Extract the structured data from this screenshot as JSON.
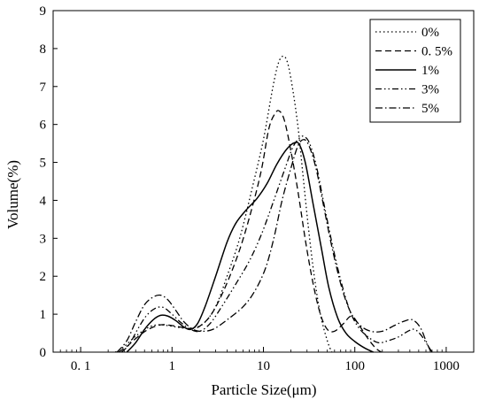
{
  "chart_data": {
    "type": "line",
    "xlabel": "Particle Size(μm)",
    "ylabel": "Volume(%)",
    "xscale": "log",
    "xlim": [
      0.05,
      2000
    ],
    "ylim": [
      0,
      9
    ],
    "x_ticks": [
      0.1,
      1,
      10,
      100,
      1000
    ],
    "x_tick_labels": [
      "0. 1",
      "1",
      "10",
      "100",
      "1000"
    ],
    "y_ticks": [
      0,
      1,
      2,
      3,
      4,
      5,
      6,
      7,
      8,
      9
    ],
    "y_tick_labels": [
      "0",
      "1",
      "2",
      "3",
      "4",
      "5",
      "6",
      "7",
      "8",
      "9"
    ],
    "legend_position": "top-right",
    "grid": false,
    "series": [
      {
        "name": "0%",
        "style": "dotted",
        "points": [
          [
            0.24,
            0
          ],
          [
            0.3,
            0.15
          ],
          [
            0.4,
            0.42
          ],
          [
            0.55,
            0.65
          ],
          [
            0.7,
            0.72
          ],
          [
            0.9,
            0.7
          ],
          [
            1.2,
            0.65
          ],
          [
            1.6,
            0.63
          ],
          [
            2.2,
            0.75
          ],
          [
            3,
            1.2
          ],
          [
            4,
            2.0
          ],
          [
            5.5,
            3.0
          ],
          [
            7.5,
            4.3
          ],
          [
            10,
            5.6
          ],
          [
            12.5,
            6.9
          ],
          [
            14.5,
            7.6
          ],
          [
            16.5,
            7.8
          ],
          [
            18.5,
            7.6
          ],
          [
            21,
            6.9
          ],
          [
            24,
            5.9
          ],
          [
            27,
            4.7
          ],
          [
            31,
            3.3
          ],
          [
            36,
            2.0
          ],
          [
            42,
            1.0
          ],
          [
            50,
            0.3
          ],
          [
            56,
            0
          ]
        ]
      },
      {
        "name": "0. 5%",
        "style": "dashed",
        "points": [
          [
            0.26,
            0
          ],
          [
            0.32,
            0.15
          ],
          [
            0.42,
            0.4
          ],
          [
            0.55,
            0.6
          ],
          [
            0.75,
            0.72
          ],
          [
            1.0,
            0.7
          ],
          [
            1.3,
            0.65
          ],
          [
            1.6,
            0.62
          ],
          [
            2.0,
            0.68
          ],
          [
            2.7,
            1.0
          ],
          [
            3.8,
            1.7
          ],
          [
            5.5,
            2.7
          ],
          [
            7.5,
            3.8
          ],
          [
            9.5,
            4.8
          ],
          [
            11.5,
            5.9
          ],
          [
            13.5,
            6.3
          ],
          [
            15,
            6.35
          ],
          [
            17,
            6.1
          ],
          [
            20,
            5.3
          ],
          [
            24,
            4.2
          ],
          [
            29,
            2.9
          ],
          [
            35,
            1.8
          ],
          [
            42,
            1.0
          ],
          [
            50,
            0.6
          ],
          [
            60,
            0.55
          ],
          [
            75,
            0.75
          ],
          [
            92,
            0.95
          ],
          [
            112,
            0.7
          ],
          [
            140,
            0.35
          ],
          [
            170,
            0.1
          ],
          [
            195,
            0
          ]
        ]
      },
      {
        "name": "1%",
        "style": "solid",
        "points": [
          [
            0.32,
            0
          ],
          [
            0.4,
            0.25
          ],
          [
            0.5,
            0.6
          ],
          [
            0.62,
            0.85
          ],
          [
            0.75,
            0.97
          ],
          [
            0.9,
            0.95
          ],
          [
            1.1,
            0.83
          ],
          [
            1.35,
            0.66
          ],
          [
            1.6,
            0.6
          ],
          [
            1.9,
            0.75
          ],
          [
            2.3,
            1.2
          ],
          [
            3,
            2.0
          ],
          [
            4,
            2.9
          ],
          [
            5,
            3.4
          ],
          [
            6.5,
            3.75
          ],
          [
            8.5,
            4.05
          ],
          [
            11,
            4.45
          ],
          [
            14,
            4.95
          ],
          [
            18,
            5.35
          ],
          [
            22,
            5.52
          ],
          [
            25,
            5.45
          ],
          [
            29,
            4.95
          ],
          [
            35,
            3.9
          ],
          [
            43,
            2.75
          ],
          [
            52,
            1.7
          ],
          [
            65,
            0.9
          ],
          [
            80,
            0.5
          ],
          [
            100,
            0.28
          ],
          [
            130,
            0.1
          ],
          [
            160,
            0
          ]
        ]
      },
      {
        "name": "3%",
        "style": "dashdotdot",
        "points": [
          [
            0.28,
            0
          ],
          [
            0.34,
            0.2
          ],
          [
            0.42,
            0.6
          ],
          [
            0.52,
            0.95
          ],
          [
            0.65,
            1.15
          ],
          [
            0.8,
            1.18
          ],
          [
            1.0,
            1.0
          ],
          [
            1.25,
            0.78
          ],
          [
            1.6,
            0.6
          ],
          [
            2.0,
            0.55
          ],
          [
            2.6,
            0.75
          ],
          [
            3.5,
            1.2
          ],
          [
            5,
            1.8
          ],
          [
            7,
            2.4
          ],
          [
            9.5,
            3.1
          ],
          [
            13,
            4.0
          ],
          [
            17,
            4.8
          ],
          [
            21,
            5.4
          ],
          [
            25,
            5.65
          ],
          [
            28,
            5.68
          ],
          [
            32,
            5.5
          ],
          [
            38,
            4.9
          ],
          [
            46,
            3.9
          ],
          [
            56,
            2.9
          ],
          [
            70,
            1.9
          ],
          [
            88,
            1.1
          ],
          [
            110,
            0.65
          ],
          [
            140,
            0.4
          ],
          [
            180,
            0.25
          ],
          [
            230,
            0.3
          ],
          [
            300,
            0.4
          ],
          [
            380,
            0.55
          ],
          [
            450,
            0.6
          ],
          [
            530,
            0.45
          ],
          [
            620,
            0.2
          ],
          [
            700,
            0
          ]
        ]
      },
      {
        "name": "5%",
        "style": "dashdot",
        "points": [
          [
            0.25,
            0
          ],
          [
            0.32,
            0.3
          ],
          [
            0.4,
            0.8
          ],
          [
            0.5,
            1.25
          ],
          [
            0.62,
            1.45
          ],
          [
            0.75,
            1.5
          ],
          [
            0.9,
            1.38
          ],
          [
            1.1,
            1.1
          ],
          [
            1.35,
            0.8
          ],
          [
            1.7,
            0.6
          ],
          [
            2.1,
            0.55
          ],
          [
            2.8,
            0.6
          ],
          [
            4,
            0.85
          ],
          [
            6,
            1.2
          ],
          [
            8,
            1.6
          ],
          [
            10.5,
            2.2
          ],
          [
            13,
            3.0
          ],
          [
            16,
            4.0
          ],
          [
            20,
            4.85
          ],
          [
            24,
            5.45
          ],
          [
            28,
            5.6
          ],
          [
            32,
            5.4
          ],
          [
            38,
            4.8
          ],
          [
            46,
            3.8
          ],
          [
            57,
            2.7
          ],
          [
            72,
            1.7
          ],
          [
            90,
            1.05
          ],
          [
            115,
            0.7
          ],
          [
            150,
            0.55
          ],
          [
            200,
            0.55
          ],
          [
            270,
            0.7
          ],
          [
            350,
            0.82
          ],
          [
            430,
            0.85
          ],
          [
            520,
            0.65
          ],
          [
            600,
            0.3
          ],
          [
            680,
            0
          ]
        ]
      }
    ]
  }
}
